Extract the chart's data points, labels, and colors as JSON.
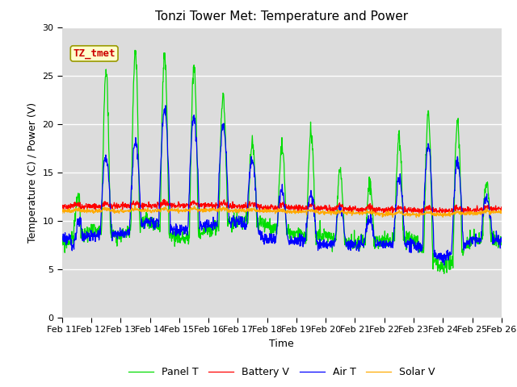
{
  "title": "Tonzi Tower Met: Temperature and Power",
  "xlabel": "Time",
  "ylabel": "Temperature (C) / Power (V)",
  "ylim": [
    0,
    30
  ],
  "x_tick_labels": [
    "Feb 11",
    "Feb 12",
    "Feb 13",
    "Feb 14",
    "Feb 15",
    "Feb 16",
    "Feb 17",
    "Feb 18",
    "Feb 19",
    "Feb 20",
    "Feb 21",
    "Feb 22",
    "Feb 23",
    "Feb 24",
    "Feb 25",
    "Feb 26"
  ],
  "annotation_text": "TZ_tmet",
  "annotation_color": "#cc0000",
  "annotation_bg": "#ffffcc",
  "annotation_border": "#999900",
  "line_colors": {
    "panel": "#00dd00",
    "battery": "#ff0000",
    "air": "#0000ff",
    "solar": "#ffaa00"
  },
  "legend_labels": [
    "Panel T",
    "Battery V",
    "Air T",
    "Solar V"
  ],
  "plot_bg": "#dcdcdc",
  "grid_color": "#ffffff",
  "title_fontsize": 11,
  "label_fontsize": 9,
  "tick_fontsize": 8
}
